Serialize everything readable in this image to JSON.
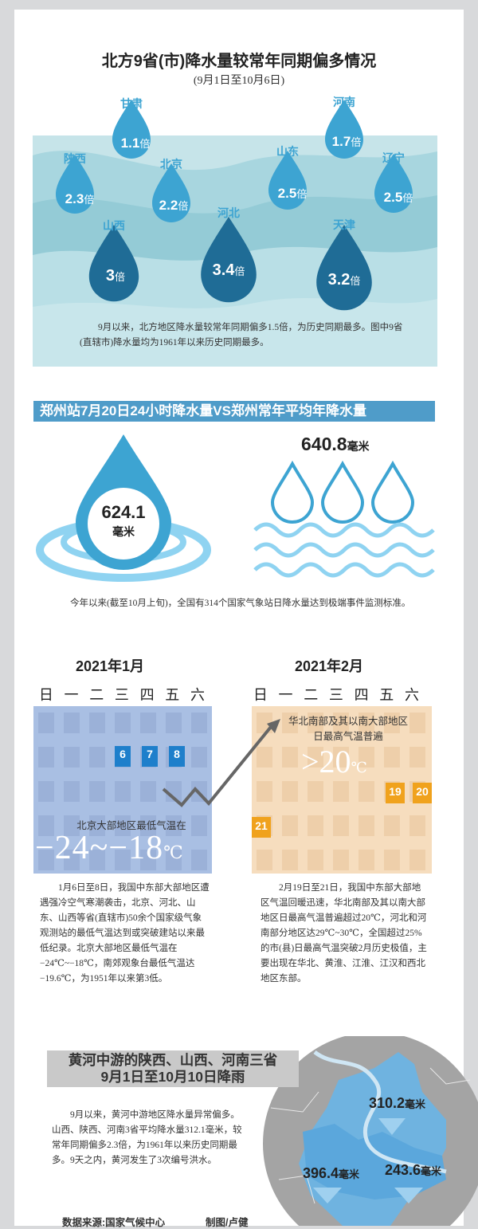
{
  "section1": {
    "title": "北方9省(市)降水量较常年同期偏多情况",
    "subtitle": "(9月1日至10月6日)",
    "unit": "倍",
    "provinces": [
      {
        "name": "甘肃",
        "value": "1.1"
      },
      {
        "name": "河南",
        "value": "1.7"
      },
      {
        "name": "陕西",
        "value": "2.3"
      },
      {
        "name": "北京",
        "value": "2.2"
      },
      {
        "name": "山东",
        "value": "2.5"
      },
      {
        "name": "辽宁",
        "value": "2.5"
      },
      {
        "name": "山西",
        "value": "3"
      },
      {
        "name": "河北",
        "value": "3.4"
      },
      {
        "name": "天津",
        "value": "3.2"
      }
    ],
    "note": "9月以来，北方地区降水量较常年同期偏多1.5倍，为历史同期最多。图中9省(直辖市)降水量均为1961年以来历史同期最多。"
  },
  "section2": {
    "banner": "郑州站7月20日24小时降水量VS郑州常年平均年降水量",
    "left_value": "624.1",
    "left_unit": "毫米",
    "right_value": "640.8",
    "right_unit": "毫米",
    "note": "今年以来(截至10月上旬)，全国有314个国家气象站日降水量达到极端事件监测标准。"
  },
  "section3": {
    "weekdays": [
      "日",
      "一",
      "二",
      "三",
      "四",
      "五",
      "六"
    ],
    "jan": {
      "month": "2021年1月",
      "days": [
        "6",
        "7",
        "8"
      ],
      "caption": "北京大部地区最低气温在",
      "temp": "−24~−18",
      "temp_unit": "℃",
      "para": "1月6日至8日，我国中东部大部地区遭遇强冷空气寒潮袭击，北京、河北、山东、山西等省(直辖市)50余个国家级气象观测站的最低气温达到或突破建站以来最低纪录。北京大部地区最低气温在−24℃~−18℃，南郊观象台最低气温达−19.6℃，为1951年以来第3低。",
      "color": "#a9bfe3"
    },
    "feb": {
      "month": "2021年2月",
      "days": [
        "19",
        "20",
        "21"
      ],
      "caption": "华北南部及其以南大部地区日最高气温普遍",
      "temp": ">20",
      "temp_unit": "℃",
      "para": "2月19日至21日，我国中东部大部地区气温回暖迅速，华北南部及其以南大部地区日最高气温普遍超过20℃，河北和河南部分地区达29℃~30℃，全国超过25%的市(县)日最高气温突破2月历史极值，主要出现在华北、黄淮、江淮、江汉和西北地区东部。",
      "color": "#f6ddbe"
    }
  },
  "section4": {
    "title": "黄河中游的陕西、山西、河南三省9月1日至10月10日降雨",
    "para": "9月以来，黄河中游地区降水量异常偏多。山西、陕西、河南3省平均降水量312.1毫米，较常年同期偏多2.3倍，为1961年以来历史同期最多。9天之内，黄河发生了3次编号洪水。",
    "values": [
      {
        "value": "310.2",
        "unit": "毫米"
      },
      {
        "value": "396.4",
        "unit": "毫米"
      },
      {
        "value": "243.6",
        "unit": "毫米"
      }
    ]
  },
  "footer": {
    "source": "数据来源:国家气候中心",
    "credit": "制图/卢健"
  }
}
